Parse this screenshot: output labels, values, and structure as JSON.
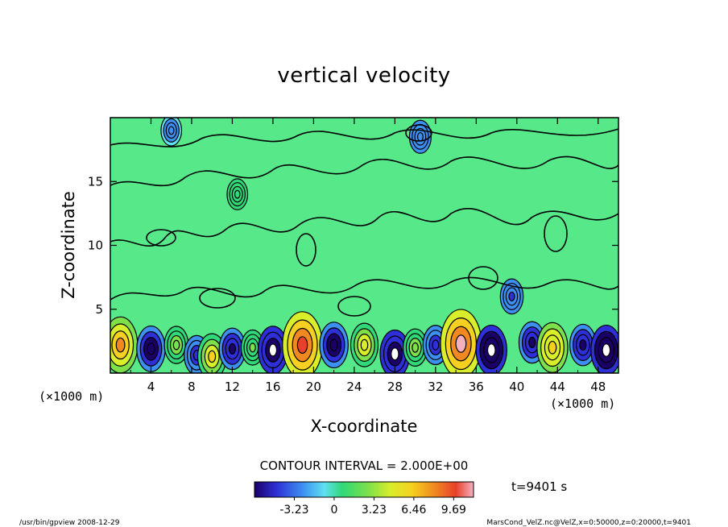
{
  "chart_data": {
    "type": "heatmap",
    "title": "vertical velocity",
    "xlabel": "X-coordinate",
    "ylabel": "Z-coordinate",
    "x_unit": "(×1000 m)",
    "y_unit": "(×1000 m)",
    "xlim": [
      0,
      50
    ],
    "ylim": [
      0,
      20
    ],
    "x_ticks": [
      "4",
      "8",
      "12",
      "16",
      "20",
      "24",
      "28",
      "32",
      "36",
      "40",
      "44",
      "48"
    ],
    "y_ticks": [
      "5",
      "10",
      "15"
    ],
    "contour_interval_label": "CONTOUR INTERVAL = 2.000E+00",
    "colorbar": {
      "ticks": [
        "-3.23",
        "0",
        "3.23",
        "6.46",
        "9.69"
      ],
      "min": -6.46,
      "max": 11.3
    },
    "time_label": "t=9401 s",
    "cells": [
      {
        "x": 1.0,
        "z": 2.2,
        "v": 8.0
      },
      {
        "x": 4.0,
        "z": 1.9,
        "v": -5.5
      },
      {
        "x": 6.5,
        "z": 2.2,
        "v": 3.5
      },
      {
        "x": 8.5,
        "z": 1.4,
        "v": -4.0
      },
      {
        "x": 10.0,
        "z": 1.3,
        "v": 5.5
      },
      {
        "x": 12.0,
        "z": 1.9,
        "v": -4.5
      },
      {
        "x": 14.0,
        "z": 2.0,
        "v": 3.0
      },
      {
        "x": 16.0,
        "z": 1.8,
        "v": -6.0
      },
      {
        "x": 18.9,
        "z": 2.2,
        "v": 10.5
      },
      {
        "x": 22.0,
        "z": 2.2,
        "v": -5.5
      },
      {
        "x": 25.0,
        "z": 2.2,
        "v": 5.0
      },
      {
        "x": 28.0,
        "z": 1.5,
        "v": -6.0
      },
      {
        "x": 30.0,
        "z": 2.0,
        "v": 3.5
      },
      {
        "x": 32.0,
        "z": 2.2,
        "v": -4.0
      },
      {
        "x": 34.5,
        "z": 2.3,
        "v": 11.0
      },
      {
        "x": 37.5,
        "z": 1.8,
        "v": -6.5
      },
      {
        "x": 41.5,
        "z": 2.4,
        "v": -4.5
      },
      {
        "x": 43.5,
        "z": 2.0,
        "v": 6.5
      },
      {
        "x": 46.5,
        "z": 2.2,
        "v": -4.5
      },
      {
        "x": 48.8,
        "z": 1.8,
        "v": -6.5
      },
      {
        "x": 39.5,
        "z": 6.0,
        "v": -3.0
      },
      {
        "x": 30.5,
        "z": 18.5,
        "v": -2.5
      },
      {
        "x": 6.0,
        "z": 19.0,
        "v": -2.0
      },
      {
        "x": 12.5,
        "z": 14.0,
        "v": 2.0
      }
    ]
  },
  "footer": {
    "left": "/usr/bin/gpview   2008-12-29",
    "right": "MarsCond_VelZ.nc@VelZ,x=0:50000,z=0:20000,t=9401"
  }
}
